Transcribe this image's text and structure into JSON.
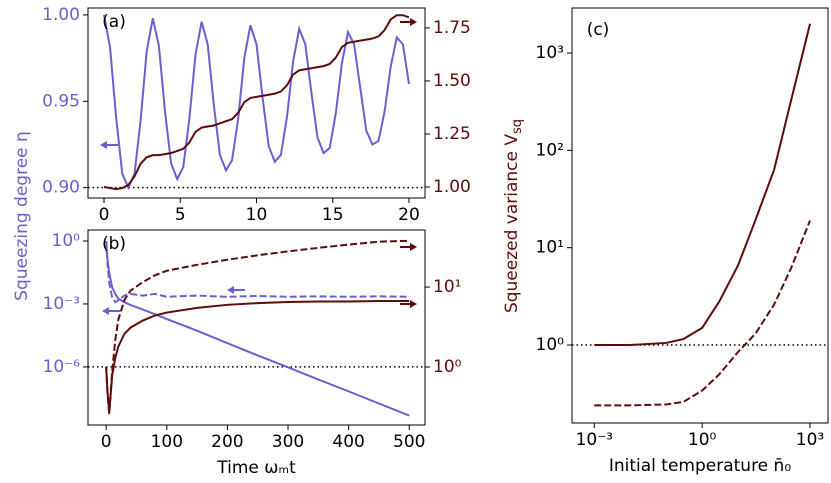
{
  "chart_data": [
    {
      "type": "line",
      "panel_label": "(a)",
      "ylabel": "Squeezing degree η",
      "ylabel_color": "#6a5fd1",
      "ytick_color": "#6a5fd1",
      "y2tick_color": "#5e0b0b",
      "xlim": [
        -1.05,
        21.05
      ],
      "ylim": [
        0.894,
        1.004
      ],
      "y2lim": [
        0.948,
        1.844
      ],
      "xticks": [
        0,
        5,
        10,
        15,
        20
      ],
      "yticks": [
        {
          "value": 0.9,
          "label": "0.90"
        },
        0.95,
        {
          "value": 1.0,
          "label": "1.00"
        }
      ],
      "y2ticks": [
        {
          "value": 1.0,
          "label": "1.00"
        },
        1.25,
        {
          "value": 1.5,
          "label": "1.50"
        },
        1.75
      ],
      "reference_line": 0.9,
      "x": [
        0,
        0.4,
        0.8,
        1.2,
        1.6,
        2,
        2.4,
        2.8,
        3.2,
        3.6,
        4,
        4.4,
        4.8,
        5.2,
        5.6,
        6,
        6.4,
        6.8,
        7.2,
        7.6,
        8,
        8.4,
        8.8,
        9.2,
        9.6,
        10,
        10.4,
        10.8,
        11.2,
        11.6,
        12,
        12.4,
        12.8,
        13.2,
        13.6,
        14,
        14.4,
        14.8,
        15.2,
        15.6,
        16,
        16.4,
        16.8,
        17.2,
        17.6,
        18,
        18.4,
        18.8,
        19.2,
        19.6,
        20
      ],
      "series": [
        {
          "color": "#6a5fd1",
          "style": "solid",
          "values": [
            1.0,
            0.981,
            0.94,
            0.908,
            0.9,
            0.908,
            0.939,
            0.979,
            0.998,
            0.982,
            0.944,
            0.914,
            0.905,
            0.912,
            0.94,
            0.977,
            0.996,
            0.983,
            0.948,
            0.919,
            0.91,
            0.916,
            0.94,
            0.975,
            0.994,
            0.983,
            0.952,
            0.924,
            0.915,
            0.919,
            0.941,
            0.973,
            0.992,
            0.983,
            0.955,
            0.929,
            0.92,
            0.923,
            0.943,
            0.972,
            0.99,
            0.983,
            0.958,
            0.933,
            0.925,
            0.927,
            0.944,
            0.97,
            0.987,
            0.983,
            0.96
          ]
        },
        {
          "color": "#5e0b0b",
          "style": "solid",
          "axis": "y2",
          "values": [
            1.0,
            0.995,
            0.99,
            0.995,
            1.01,
            1.05,
            1.11,
            1.14,
            1.15,
            1.15,
            1.155,
            1.16,
            1.17,
            1.18,
            1.21,
            1.26,
            1.28,
            1.285,
            1.29,
            1.3,
            1.31,
            1.32,
            1.35,
            1.4,
            1.42,
            1.425,
            1.43,
            1.435,
            1.44,
            1.45,
            1.48,
            1.53,
            1.55,
            1.555,
            1.56,
            1.565,
            1.57,
            1.58,
            1.61,
            1.66,
            1.68,
            1.685,
            1.69,
            1.695,
            1.7,
            1.71,
            1.74,
            1.79,
            1.81,
            1.81,
            1.8
          ]
        }
      ]
    },
    {
      "type": "line",
      "panel_label": "(b)",
      "xlabel": "Time ωₘt",
      "ytick_color": "#6a5fd1",
      "y2tick_color": "#5e0b0b",
      "ylog": true,
      "y2log": true,
      "xlim": [
        -30,
        526
      ],
      "ylim": [
        1.7e-09,
        3.34
      ],
      "y2lim": [
        0.188,
        51.8
      ],
      "xticks": [
        0,
        100,
        200,
        300,
        400,
        500
      ],
      "yticks": [
        {
          "value": 1,
          "label": "10⁰"
        },
        {
          "value": 0.001,
          "label": "10⁻³"
        },
        {
          "value": 1e-06,
          "label": "10⁻⁶"
        }
      ],
      "y2ticks": [
        {
          "value": 1,
          "label": "10⁰"
        },
        {
          "value": 10,
          "label": "10¹"
        }
      ],
      "reference_line": 1e-06,
      "x": [
        0,
        2,
        5,
        10,
        15,
        20,
        30,
        40,
        60,
        80,
        100,
        150,
        200,
        250,
        300,
        350,
        400,
        450,
        500
      ],
      "series": [
        {
          "color": "#6a5fd1",
          "style": "solid",
          "values": [
            1,
            0.15,
            0.03,
            0.006,
            0.003,
            0.0018,
            0.0012,
            0.0009,
            0.00055,
            0.00033,
            0.00019,
            5.3e-05,
            1.35e-05,
            3.5e-06,
            9.5e-07,
            2.5e-07,
            6.8e-08,
            1.8e-08,
            4.8e-09
          ]
        },
        {
          "color": "#6a5fd1",
          "style": "dashed",
          "values": [
            1,
            0.1,
            0.01,
            0.002,
            0.0012,
            0.0015,
            0.0025,
            0.003,
            0.0025,
            0.003,
            0.0022,
            0.0025,
            0.0022,
            0.0024,
            0.0022,
            0.0023,
            0.0022,
            0.0023,
            0.0022
          ]
        },
        {
          "color": "#5e0b0b",
          "style": "solid",
          "axis": "y2",
          "values": [
            1,
            0.5,
            0.27,
            0.8,
            1.3,
            1.8,
            2.6,
            3.1,
            3.8,
            4.4,
            4.8,
            5.5,
            6.0,
            6.3,
            6.5,
            6.6,
            6.6,
            6.7,
            6.7
          ]
        },
        {
          "color": "#5e0b0b",
          "style": "dashed",
          "axis": "y2",
          "values": [
            1,
            0.5,
            0.26,
            0.9,
            2.2,
            3.9,
            6.9,
            9,
            11.5,
            14,
            16,
            19,
            22,
            25,
            28,
            31,
            34,
            37,
            38
          ]
        }
      ]
    },
    {
      "type": "line",
      "panel_label": "(c)",
      "ylabel": [
        "Squeezed variance V",
        "sq"
      ],
      "xlabel": "Initial temperature n̄₀",
      "ylabel_color": "#5e0b0b",
      "ytick_color": "#000000",
      "xlog": true,
      "ylog": true,
      "xlim": [
        0.00024,
        3162
      ],
      "ylim": [
        0.158,
        2900
      ],
      "xticks": [
        {
          "value": 0.001,
          "label": "10⁻³"
        },
        {
          "value": 1,
          "label": "10⁰"
        },
        {
          "value": 1000,
          "label": "10³"
        }
      ],
      "yticks": [
        {
          "value": 1,
          "label": "10⁰"
        },
        {
          "value": 10,
          "label": "10¹"
        },
        {
          "value": 100,
          "label": "10²"
        },
        {
          "value": 1000,
          "label": "10³"
        }
      ],
      "reference_line": 1,
      "x": [
        0.001,
        0.01,
        0.1,
        0.3,
        1,
        3,
        10,
        30,
        100,
        300,
        1000
      ],
      "series": [
        {
          "color": "#5e0b0b",
          "style": "solid",
          "values": [
            1.0,
            1.0,
            1.05,
            1.15,
            1.5,
            2.8,
            6.6,
            19,
            63,
            330,
            2000
          ]
        },
        {
          "color": "#5e0b0b",
          "style": "dashed",
          "values": [
            0.24,
            0.24,
            0.245,
            0.26,
            0.34,
            0.5,
            0.85,
            1.3,
            2.6,
            6.2,
            19
          ]
        }
      ]
    }
  ]
}
